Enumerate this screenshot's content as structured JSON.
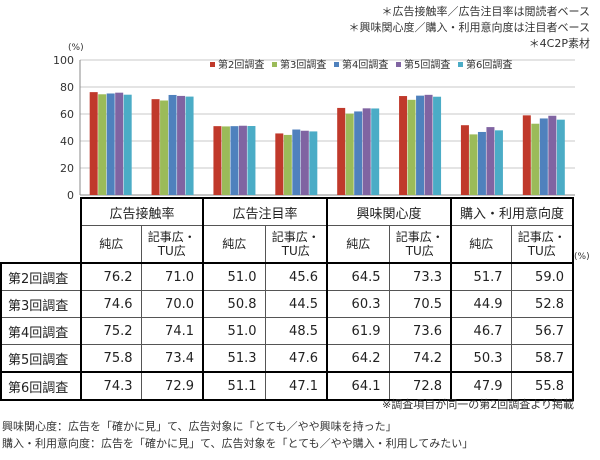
{
  "notes": [
    "＊広告接触率／広告注目率は閲読者ベース",
    "＊興味関心度／購入・利用意向度は注目者ベース",
    "＊4C2P素材"
  ],
  "chart_data": {
    "type": "bar",
    "unit": "(%)",
    "ylim": [
      0,
      100
    ],
    "yticks": [
      0,
      20,
      40,
      60,
      80,
      100
    ],
    "categories_top": [
      "広告接触率",
      "広告注目率",
      "興味関心度",
      "購入・利用意向度"
    ],
    "categories": [
      "純広",
      "記事広・TU広",
      "純広",
      "記事広・TU広",
      "純広",
      "記事広・TU広",
      "純広",
      "記事広・TU広"
    ],
    "series": [
      {
        "name": "第2回調査",
        "color": "#c0392b",
        "values": [
          76.2,
          71.0,
          51.0,
          45.6,
          64.5,
          73.3,
          51.7,
          59.0
        ]
      },
      {
        "name": "第3回調査",
        "color": "#9bbb59",
        "values": [
          74.6,
          70.0,
          50.8,
          44.5,
          60.3,
          70.5,
          44.9,
          52.8
        ]
      },
      {
        "name": "第4回調査",
        "color": "#4f81bd",
        "values": [
          75.2,
          74.1,
          51.0,
          48.5,
          61.9,
          73.6,
          46.7,
          56.7
        ]
      },
      {
        "name": "第5回調査",
        "color": "#8064a2",
        "values": [
          75.8,
          73.4,
          51.3,
          47.6,
          64.2,
          74.2,
          50.3,
          58.7
        ]
      },
      {
        "name": "第6回調査",
        "color": "#4bacc6",
        "values": [
          74.3,
          72.9,
          51.1,
          47.1,
          64.1,
          72.8,
          47.9,
          55.8
        ]
      }
    ],
    "legend": "top-right",
    "grid": true
  },
  "table": {
    "groups": [
      "広告接触率",
      "広告注目率",
      "興味関心度",
      "購入・利用意向度"
    ],
    "subheaders": [
      "純広",
      "記事広・\nTU広",
      "純広",
      "記事広・\nTU広",
      "純広",
      "記事広・\nTU広",
      "純広",
      "記事広・\nTU広"
    ],
    "unit": "(%)",
    "rows": [
      {
        "label": "第2回調査",
        "values": [
          "76.2",
          "71.0",
          "51.0",
          "45.6",
          "64.5",
          "73.3",
          "51.7",
          "59.0"
        ]
      },
      {
        "label": "第3回調査",
        "values": [
          "74.6",
          "70.0",
          "50.8",
          "44.5",
          "60.3",
          "70.5",
          "44.9",
          "52.8"
        ]
      },
      {
        "label": "第4回調査",
        "values": [
          "75.2",
          "74.1",
          "51.0",
          "48.5",
          "61.9",
          "73.6",
          "46.7",
          "56.7"
        ]
      },
      {
        "label": "第5回調査",
        "values": [
          "75.8",
          "73.4",
          "51.3",
          "47.6",
          "64.2",
          "74.2",
          "50.3",
          "58.7"
        ]
      },
      {
        "label": "第6回調査",
        "values": [
          "74.3",
          "72.9",
          "51.1",
          "47.1",
          "64.1",
          "72.8",
          "47.9",
          "55.8"
        ]
      }
    ]
  },
  "source_note": "※調査項目が同一の第2回調査より掲載",
  "footer": [
    "興味関心度：広告を「確かに見」て、広告対象に「とても／やや興味を持った」",
    "購入・利用意向度：広告を「確かに見」て、広告対象を「とても／やや購入・利用してみたい」"
  ]
}
